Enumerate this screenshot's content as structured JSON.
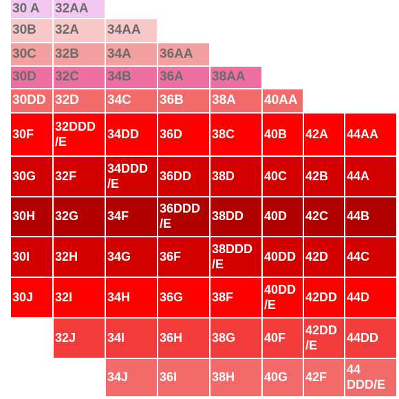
{
  "rows": [
    [
      {
        "label": "30 A",
        "color": "#f2c8f2",
        "dark": true
      },
      {
        "label": "32AA",
        "color": "#f2c8f2",
        "dark": true
      }
    ],
    [
      {
        "label": "30B",
        "color": "#f8c8c8",
        "dark": true
      },
      {
        "label": "32A",
        "color": "#f8c8c8",
        "dark": true
      },
      {
        "label": "34AA",
        "color": "#f8c8c8",
        "dark": true
      }
    ],
    [
      {
        "label": "30C",
        "color": "#f3a0a0",
        "dark": true
      },
      {
        "label": "32B",
        "color": "#f3a0a0",
        "dark": true
      },
      {
        "label": "34A",
        "color": "#f3a0a0",
        "dark": true
      },
      {
        "label": "36AA",
        "color": "#f3a0a0",
        "dark": true
      }
    ],
    [
      {
        "label": "30D",
        "color": "#f06fa3",
        "dark": true
      },
      {
        "label": "32C",
        "color": "#f06fa3",
        "dark": true
      },
      {
        "label": "34B",
        "color": "#f06fa3",
        "dark": true
      },
      {
        "label": "36A",
        "color": "#f06fa3",
        "dark": true
      },
      {
        "label": "38AA",
        "color": "#f06fa3",
        "dark": true
      }
    ],
    [
      {
        "label": "30DD",
        "color": "#f26a6a"
      },
      {
        "label": "32D",
        "color": "#f26a6a"
      },
      {
        "label": "34C",
        "color": "#f26a6a"
      },
      {
        "label": "36B",
        "color": "#f26a6a"
      },
      {
        "label": "38A",
        "color": "#f26a6a"
      },
      {
        "label": "40AA",
        "color": "#f26a6a"
      }
    ],
    [
      {
        "label": "30F",
        "color": "#ff0000"
      },
      {
        "label": "32DDD\n/E",
        "color": "#ff0000"
      },
      {
        "label": "34DD",
        "color": "#ff0000"
      },
      {
        "label": "36D",
        "color": "#ff0000"
      },
      {
        "label": "38C",
        "color": "#ff0000"
      },
      {
        "label": "40B",
        "color": "#ff0000"
      },
      {
        "label": "42A",
        "color": "#ff0000"
      },
      {
        "label": "44AA",
        "color": "#ff0000"
      }
    ],
    [
      {
        "label": "30G",
        "color": "#d40000"
      },
      {
        "label": "32F",
        "color": "#d40000"
      },
      {
        "label": "34DDD\n/E",
        "color": "#d40000"
      },
      {
        "label": "36DD",
        "color": "#d40000"
      },
      {
        "label": "38D",
        "color": "#d40000"
      },
      {
        "label": "40C",
        "color": "#d40000"
      },
      {
        "label": "42B",
        "color": "#d40000"
      },
      {
        "label": "44A",
        "color": "#d40000"
      }
    ],
    [
      {
        "label": "30H",
        "color": "#b00000"
      },
      {
        "label": "32G",
        "color": "#b00000"
      },
      {
        "label": "34F",
        "color": "#b00000"
      },
      {
        "label": "36DDD\n/E",
        "color": "#b00000"
      },
      {
        "label": "38DD",
        "color": "#b00000"
      },
      {
        "label": "40D",
        "color": "#b00000"
      },
      {
        "label": "42C",
        "color": "#b00000"
      },
      {
        "label": "44B",
        "color": "#b00000"
      }
    ],
    [
      {
        "label": "30I",
        "color": "#d40000"
      },
      {
        "label": "32H",
        "color": "#d40000"
      },
      {
        "label": "34G",
        "color": "#d40000"
      },
      {
        "label": "36F",
        "color": "#d40000"
      },
      {
        "label": "38DDD\n/E",
        "color": "#d40000"
      },
      {
        "label": "40DD",
        "color": "#d40000"
      },
      {
        "label": "42D",
        "color": "#d40000"
      },
      {
        "label": "44C",
        "color": "#d40000"
      }
    ],
    [
      {
        "label": "30J",
        "color": "#ff0000"
      },
      {
        "label": "32I",
        "color": "#ff0000"
      },
      {
        "label": "34H",
        "color": "#ff0000"
      },
      {
        "label": "36G",
        "color": "#ff0000"
      },
      {
        "label": "38F",
        "color": "#ff0000"
      },
      {
        "label": "40DD\n/E",
        "color": "#ff0000"
      },
      {
        "label": "42DD",
        "color": "#ff0000"
      },
      {
        "label": "44D",
        "color": "#ff0000"
      }
    ],
    [
      null,
      {
        "label": "32J",
        "color": "#f23c3c"
      },
      {
        "label": "34I",
        "color": "#f23c3c"
      },
      {
        "label": "36H",
        "color": "#f23c3c"
      },
      {
        "label": "38G",
        "color": "#f23c3c"
      },
      {
        "label": "40F",
        "color": "#f23c3c"
      },
      {
        "label": "42DD\n/E",
        "color": "#f23c3c"
      },
      {
        "label": "44DD",
        "color": "#f23c3c"
      }
    ],
    [
      null,
      null,
      {
        "label": "34J",
        "color": "#f26a6a"
      },
      {
        "label": "36I",
        "color": "#f26a6a"
      },
      {
        "label": "38H",
        "color": "#f26a6a"
      },
      {
        "label": "40G",
        "color": "#f26a6a"
      },
      {
        "label": "42F",
        "color": "#f26a6a"
      },
      {
        "label": "44\nDDD/E",
        "color": "#f26a6a"
      }
    ]
  ]
}
